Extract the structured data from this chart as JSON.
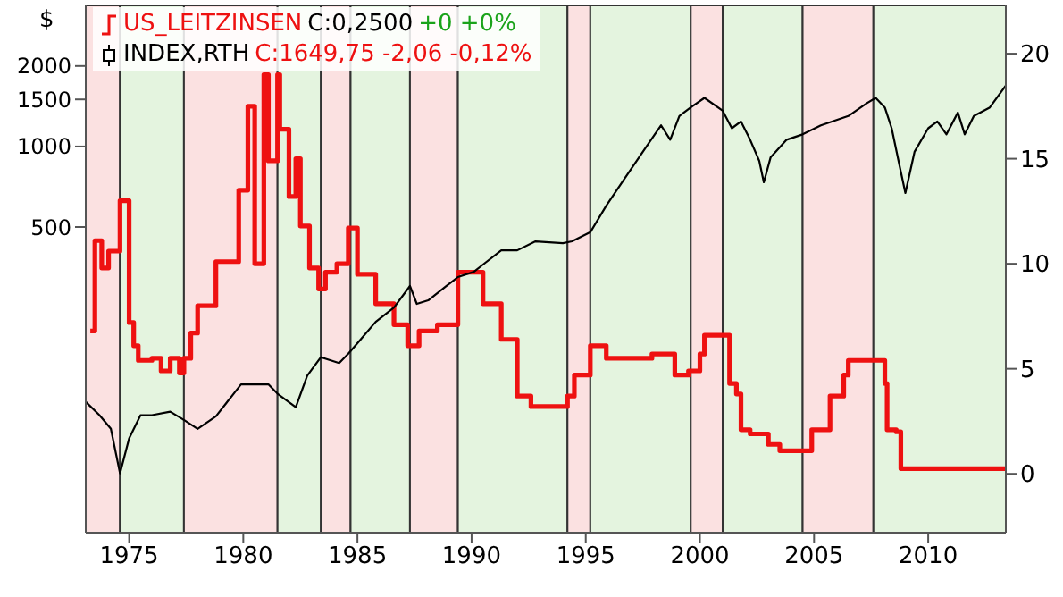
{
  "chart_data": {
    "type": "line",
    "ylabel": "$",
    "log": "y",
    "legend": "top left",
    "xlim": [
      1973.1,
      2013.4
    ],
    "xticks": [
      1975,
      1980,
      1985,
      1990,
      1995,
      2000,
      2005,
      2010
    ],
    "ylim": [
      36,
      3370
    ],
    "yticks": [
      500,
      1000,
      1500,
      2000
    ],
    "y2lim": [
      -2.8,
      22.3
    ],
    "y2ticks": [
      0,
      5,
      10,
      15,
      20
    ],
    "annotations": [
      "C:0,2500",
      "+0 +0%",
      "C:1649,75 -2,06 -0,12%"
    ],
    "bands": [
      {
        "axis": "x",
        "from": 1973.1,
        "to": 1974.6,
        "color": "#fbe1e1"
      },
      {
        "axis": "x",
        "from": 1974.6,
        "to": 1977.4,
        "color": "#e4f4df"
      },
      {
        "axis": "x",
        "from": 1977.4,
        "to": 1981.5,
        "color": "#fbe1e1"
      },
      {
        "axis": "x",
        "from": 1981.5,
        "to": 1983.4,
        "color": "#e4f4df"
      },
      {
        "axis": "x",
        "from": 1983.4,
        "to": 1984.7,
        "color": "#fbe1e1"
      },
      {
        "axis": "x",
        "from": 1984.7,
        "to": 1987.3,
        "color": "#e4f4df"
      },
      {
        "axis": "x",
        "from": 1987.3,
        "to": 1989.4,
        "color": "#fbe1e1"
      },
      {
        "axis": "x",
        "from": 1989.4,
        "to": 1994.2,
        "color": "#e4f4df"
      },
      {
        "axis": "x",
        "from": 1994.2,
        "to": 1995.2,
        "color": "#fbe1e1"
      },
      {
        "axis": "x",
        "from": 1995.2,
        "to": 1999.6,
        "color": "#e4f4df"
      },
      {
        "axis": "x",
        "from": 1999.6,
        "to": 2001.0,
        "color": "#fbe1e1"
      },
      {
        "axis": "x",
        "from": 2001.0,
        "to": 2004.5,
        "color": "#e4f4df"
      },
      {
        "axis": "x",
        "from": 2004.5,
        "to": 2007.6,
        "color": "#fbe1e1"
      },
      {
        "axis": "x",
        "from": 2007.6,
        "to": 2013.4,
        "color": "#e4f4df"
      }
    ],
    "series": [
      {
        "name": "US_LEITZINSEN",
        "type": "step",
        "axis": "y2",
        "color": "#ee1111",
        "x": [
          1973.3,
          1973.5,
          1973.8,
          1974.1,
          1974.6,
          1975.0,
          1975.2,
          1975.4,
          1976.0,
          1976.4,
          1976.8,
          1977.2,
          1977.4,
          1977.7,
          1978.0,
          1978.8,
          1979.8,
          1980.2,
          1980.5,
          1980.9,
          1981.1,
          1981.5,
          1981.6,
          1982.0,
          1982.3,
          1982.5,
          1982.9,
          1983.3,
          1983.6,
          1984.1,
          1984.6,
          1985.0,
          1985.8,
          1986.6,
          1987.2,
          1987.7,
          1988.5,
          1989.4,
          1990.5,
          1991.3,
          1992.0,
          1992.6,
          1994.0,
          1994.2,
          1994.5,
          1995.2,
          1995.9,
          1997.5,
          1997.9,
          1998.7,
          1998.9,
          1999.5,
          2000.0,
          2000.2,
          2001.0,
          2001.3,
          2001.6,
          2001.8,
          2002.2,
          2002.8,
          2003.0,
          2003.5,
          2004.5,
          2004.9,
          2005.7,
          2006.3,
          2006.5,
          2007.7,
          2008.1,
          2008.2,
          2008.6,
          2008.8,
          2013.4
        ],
        "values": [
          6.8,
          11.1,
          9.8,
          10.6,
          13.0,
          7.2,
          6.1,
          5.4,
          5.5,
          4.9,
          5.5,
          4.8,
          5.5,
          6.7,
          8.0,
          10.1,
          13.5,
          17.5,
          10.0,
          19.0,
          14.9,
          19.0,
          16.4,
          13.2,
          15.0,
          11.8,
          9.8,
          8.8,
          9.6,
          10.0,
          11.7,
          9.5,
          8.1,
          7.1,
          6.1,
          6.8,
          7.1,
          9.6,
          8.1,
          6.4,
          3.7,
          3.2,
          3.2,
          3.7,
          4.7,
          6.1,
          5.5,
          5.5,
          5.7,
          5.7,
          4.7,
          4.9,
          5.7,
          6.6,
          6.6,
          4.3,
          3.8,
          2.1,
          1.9,
          1.9,
          1.4,
          1.1,
          1.1,
          2.1,
          3.7,
          4.7,
          5.4,
          5.4,
          4.3,
          2.1,
          2.0,
          0.25,
          0.25
        ]
      },
      {
        "name": "INDEX,RTH",
        "type": "line",
        "color": "#000000",
        "x": [
          1973.1,
          1973.7,
          1974.2,
          1974.6,
          1975.0,
          1975.5,
          1976.0,
          1976.8,
          1977.4,
          1978.0,
          1978.8,
          1979.9,
          1981.1,
          1981.5,
          1982.3,
          1982.8,
          1983.4,
          1984.2,
          1984.6,
          1985.0,
          1985.8,
          1986.6,
          1987.3,
          1987.6,
          1988.1,
          1988.9,
          1989.4,
          1990.1,
          1990.5,
          1991.3,
          1992.0,
          1992.8,
          1994.0,
          1994.4,
          1995.2,
          1995.9,
          1996.7,
          1997.5,
          1998.3,
          1998.7,
          1999.1,
          1999.6,
          2000.2,
          2001.0,
          2001.4,
          2001.8,
          2002.2,
          2002.6,
          2002.8,
          2003.1,
          2003.8,
          2004.5,
          2005.3,
          2006.5,
          2007.3,
          2007.7,
          2008.1,
          2008.4,
          2008.7,
          2009.0,
          2009.4,
          2010.0,
          2010.4,
          2010.8,
          2011.3,
          2011.6,
          2012.0,
          2012.7,
          2013.4
        ],
        "values": [
          111,
          99,
          88,
          60,
          81,
          99,
          99,
          102,
          95,
          88,
          98,
          129,
          129,
          119,
          106,
          139,
          163,
          155,
          168,
          184,
          221,
          250,
          301,
          258,
          266,
          301,
          325,
          340,
          362,
          409,
          409,
          442,
          435,
          442,
          478,
          601,
          758,
          955,
          1200,
          1060,
          1300,
          1400,
          1520,
          1360,
          1170,
          1240,
          1060,
          884,
          735,
          912,
          1060,
          1110,
          1200,
          1300,
          1450,
          1520,
          1400,
          1170,
          884,
          670,
          955,
          1170,
          1240,
          1110,
          1340,
          1110,
          1300,
          1400,
          1690
        ]
      }
    ]
  }
}
